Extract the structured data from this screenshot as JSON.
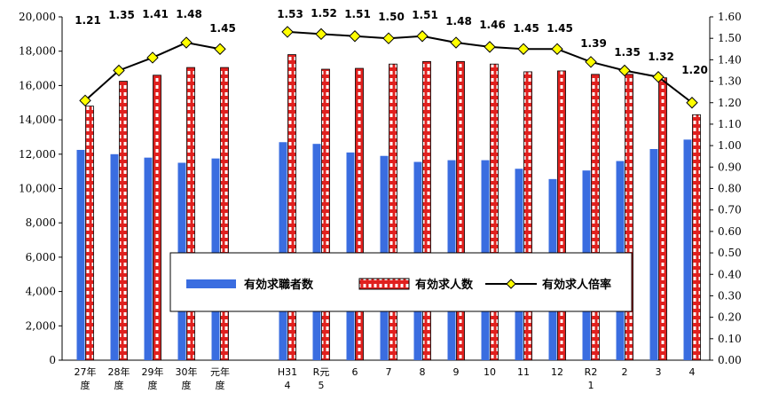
{
  "chart_data": {
    "type": "bar",
    "categories": [
      "27年度",
      "28年度",
      "29年度",
      "30年度",
      "元年度",
      "H31 4",
      "R元 5",
      "6",
      "7",
      "8",
      "9",
      "10",
      "11",
      "12",
      "R2 1",
      "2",
      "3",
      "4"
    ],
    "series": [
      {
        "name": "有効求職者数",
        "type": "bar",
        "axis": "left",
        "values": [
          12250,
          12000,
          11800,
          11500,
          11750,
          12700,
          12600,
          12100,
          11900,
          11550,
          11650,
          11650,
          11150,
          10550,
          11050,
          11600,
          12300,
          12850
        ]
      },
      {
        "name": "有効求人数",
        "type": "bar",
        "axis": "left",
        "values": [
          14800,
          16250,
          16600,
          17050,
          17050,
          17800,
          16950,
          17000,
          17250,
          17400,
          17400,
          17250,
          16800,
          16850,
          16650,
          16650,
          16450,
          14300
        ]
      },
      {
        "name": "有効求人倍率",
        "type": "line",
        "axis": "right",
        "values": [
          1.21,
          1.35,
          1.41,
          1.48,
          1.45,
          1.53,
          1.52,
          1.51,
          1.5,
          1.51,
          1.48,
          1.46,
          1.45,
          1.45,
          1.39,
          1.35,
          1.32,
          1.2
        ]
      }
    ],
    "data_labels": [
      "1.21",
      "1.35",
      "1.41",
      "1.48",
      "1.45",
      "1.53",
      "1.52",
      "1.51",
      "1.50",
      "1.51",
      "1.48",
      "1.46",
      "1.45",
      "1.45",
      "1.39",
      "1.35",
      "1.32",
      "1.20"
    ],
    "y_left": {
      "min": 0,
      "max": 20000,
      "ticks": [
        "0",
        "2,000",
        "4,000",
        "6,000",
        "8,000",
        "10,000",
        "12,000",
        "14,000",
        "16,000",
        "18,000",
        "20,000"
      ]
    },
    "y_right": {
      "min": 0,
      "max": 1.6,
      "ticks": [
        "0.00",
        "0.10",
        "0.20",
        "0.30",
        "0.40",
        "0.50",
        "0.60",
        "0.70",
        "0.80",
        "0.90",
        "1.00",
        "1.10",
        "1.20",
        "1.30",
        "1.40",
        "1.50",
        "1.60"
      ]
    },
    "legend": {
      "placement": "center"
    },
    "grid": false,
    "colors": {
      "seeker_bar": "#3a6de0",
      "offer_bar": "#e0201e",
      "offer_bar_stripe": "#ffffff",
      "ratio_line": "#000000",
      "ratio_marker": "#ffff00"
    }
  }
}
